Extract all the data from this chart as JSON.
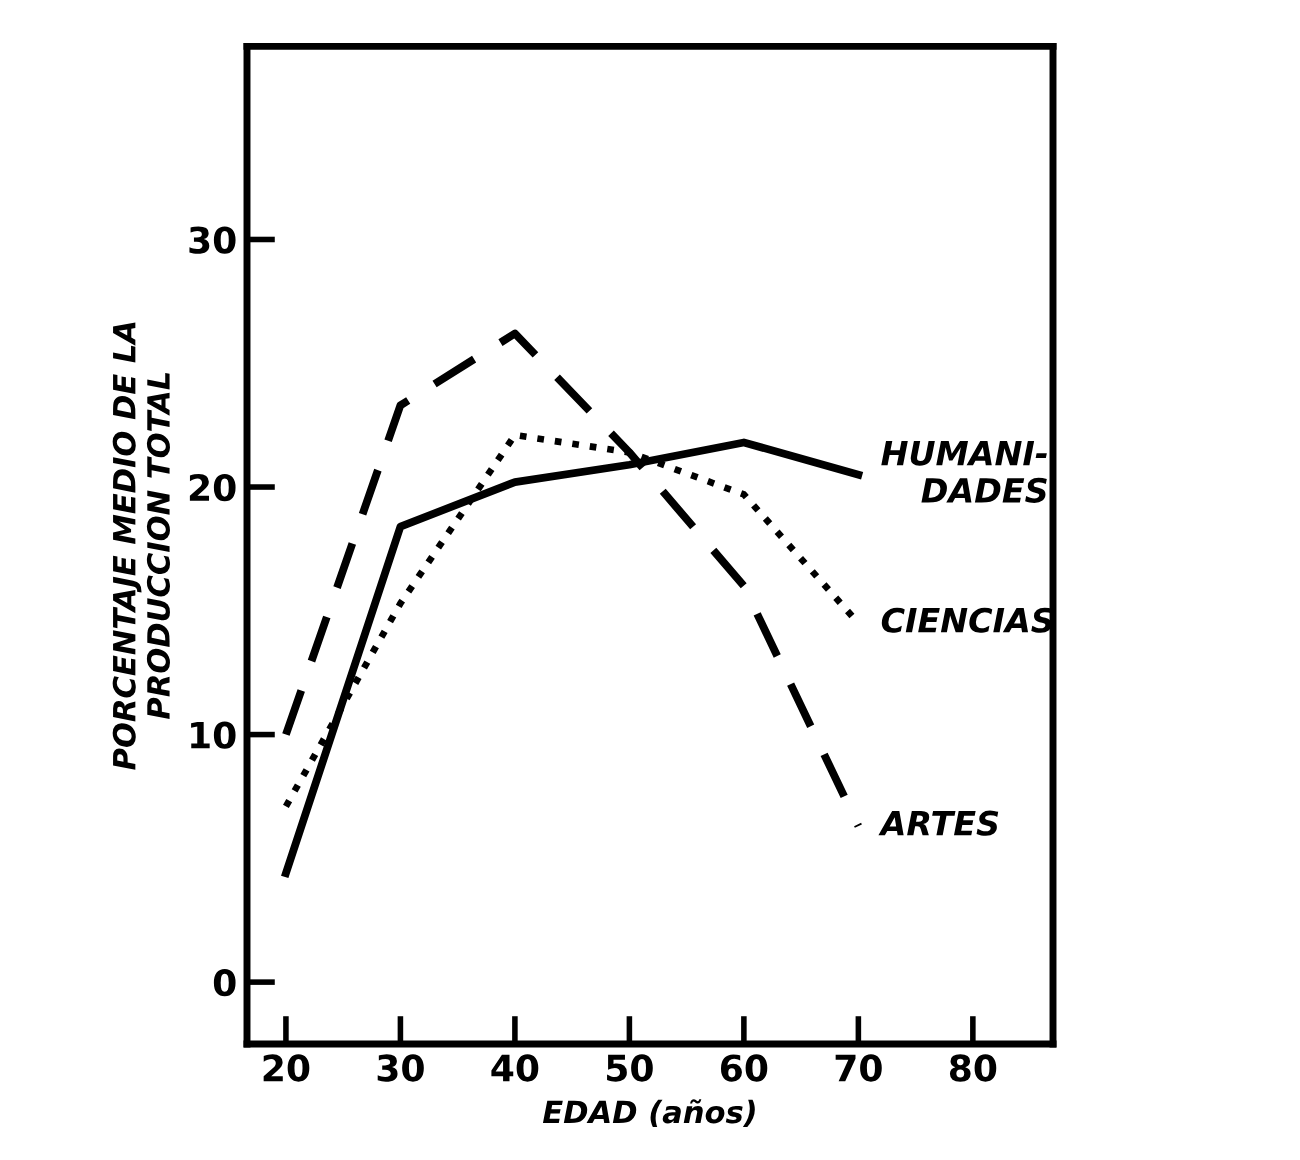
{
  "chart_data": {
    "type": "line",
    "xlabel": "EDAD (años)",
    "ylabel": "PORCENTAJE MEDIO DE LA\nPRODUCCION TOTAL",
    "x": [
      20,
      30,
      40,
      50,
      60,
      70
    ],
    "series": [
      {
        "name": "HUMANI-\nDADES",
        "color": "#000000",
        "line_style": "solid",
        "values": [
          4.4,
          18.4,
          20.2,
          20.9,
          21.8,
          20.5
        ]
      },
      {
        "name": "CIENCIAS",
        "color": "#000000",
        "line_style": "dotted",
        "values": [
          7.1,
          15.3,
          22.1,
          21.4,
          19.7,
          14.5
        ]
      },
      {
        "name": "ARTES",
        "color": "#000000",
        "line_style": "dashed",
        "values": [
          10.0,
          23.3,
          26.2,
          21.4,
          16.0,
          6.3
        ]
      }
    ],
    "xlim": [
      16.6,
      87
    ],
    "ylim": [
      -2.5,
      37.8
    ],
    "xticks": [
      20,
      30,
      40,
      50,
      60,
      70,
      80
    ],
    "yticks": [
      0,
      10,
      20,
      30
    ],
    "grid": false,
    "legend": false,
    "marker": "none"
  }
}
